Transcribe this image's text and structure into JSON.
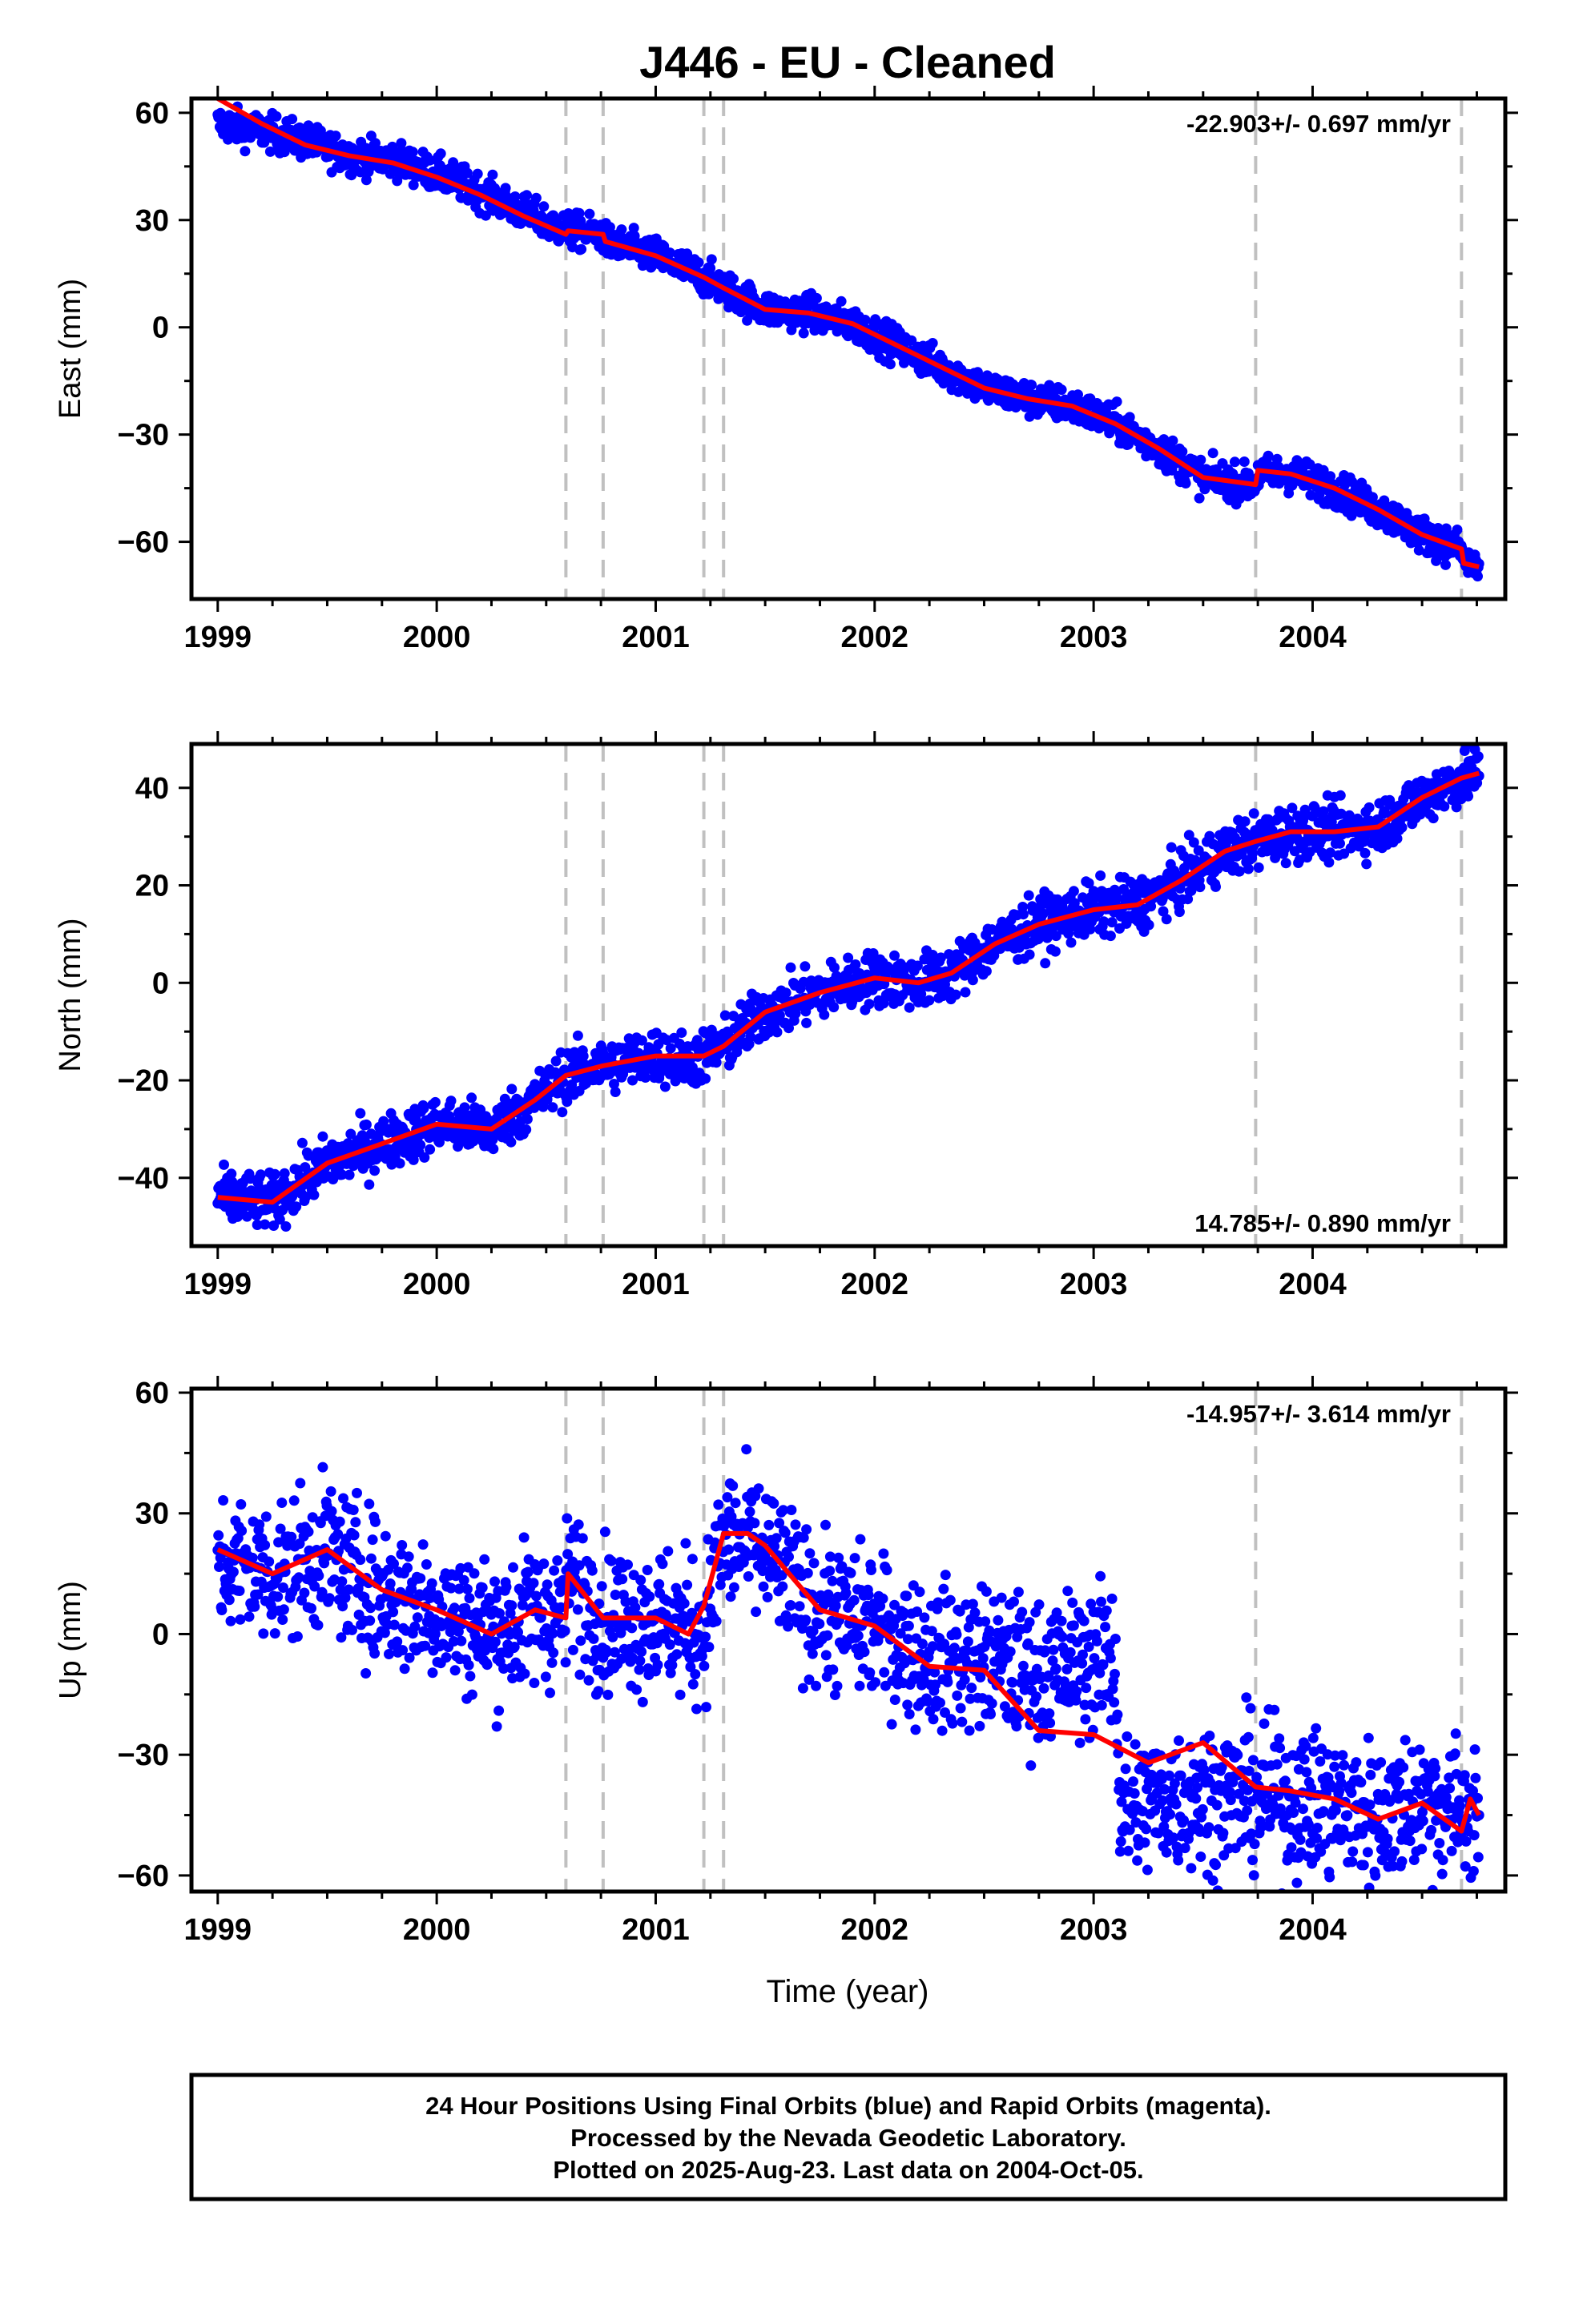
{
  "title": "J446  - EU - Cleaned",
  "xlabel": "Time (year)",
  "colors": {
    "points": "#0000ff",
    "fit": "#ff0000",
    "events": "#c0c0c0",
    "frame": "#000000"
  },
  "footer": {
    "line1": "24 Hour Positions Using Final Orbits (blue) and Rapid Orbits (magenta).",
    "line2": "Processed by the Nevada Geodetic Laboratory.",
    "line3": "Plotted on 2025-Aug-23. Last data on 2004-Oct-05."
  },
  "chart_data": [
    {
      "type": "scatter",
      "ylabel": "East (mm)",
      "rate_text": "-22.903+/- 0.697 mm/yr",
      "rate_position": "top-right",
      "xlim": [
        1998.88,
        2004.88
      ],
      "ylim": [
        -76,
        64
      ],
      "x_ticks": [
        1999,
        2000,
        2001,
        2002,
        2003,
        2004
      ],
      "x_tick_labels": [
        "1999",
        "2000",
        "2001",
        "2002",
        "2003",
        "2004"
      ],
      "y_ticks": [
        60,
        30,
        0,
        -30,
        -60
      ],
      "y_tick_labels": [
        "60",
        "30",
        "0",
        "−30",
        "−60"
      ],
      "event_lines": [
        2000.59,
        2000.76,
        2001.22,
        2001.31,
        2003.74,
        2004.68
      ],
      "series": [
        {
          "kind": "points",
          "scatter_mm": 2.5,
          "points": [
            [
              1999.0,
              57
            ],
            [
              1999.2,
              55
            ],
            [
              1999.4,
              52
            ],
            [
              1999.6,
              48
            ],
            [
              1999.8,
              47
            ],
            [
              2000.0,
              43
            ],
            [
              2000.2,
              38
            ],
            [
              2000.4,
              32
            ],
            [
              2000.59,
              27
            ],
            [
              2000.6,
              27
            ],
            [
              2000.76,
              26
            ],
            [
              2000.77,
              24
            ],
            [
              2001.0,
              20
            ],
            [
              2001.22,
              14
            ],
            [
              2001.31,
              11
            ],
            [
              2001.5,
              5
            ],
            [
              2001.7,
              4
            ],
            [
              2001.9,
              1
            ],
            [
              2002.1,
              -5
            ],
            [
              2002.3,
              -11
            ],
            [
              2002.5,
              -17
            ],
            [
              2002.7,
              -20
            ],
            [
              2002.9,
              -22
            ],
            [
              2003.1,
              -27
            ],
            [
              2003.3,
              -34
            ],
            [
              2003.5,
              -42
            ],
            [
              2003.74,
              -44
            ],
            [
              2003.75,
              -41
            ],
            [
              2003.9,
              -41
            ],
            [
              2004.1,
              -45
            ],
            [
              2004.3,
              -51
            ],
            [
              2004.5,
              -58
            ],
            [
              2004.68,
              -62
            ],
            [
              2004.69,
              -66
            ],
            [
              2004.76,
              -67
            ]
          ]
        },
        {
          "kind": "line",
          "points": [
            [
              1999.0,
              64
            ],
            [
              1999.2,
              57
            ],
            [
              1999.4,
              51
            ],
            [
              1999.6,
              48
            ],
            [
              1999.8,
              46
            ],
            [
              2000.0,
              42
            ],
            [
              2000.2,
              37
            ],
            [
              2000.4,
              31
            ],
            [
              2000.59,
              26
            ],
            [
              2000.6,
              27
            ],
            [
              2000.76,
              26
            ],
            [
              2000.77,
              24
            ],
            [
              2001.0,
              20
            ],
            [
              2001.22,
              14
            ],
            [
              2001.31,
              11
            ],
            [
              2001.5,
              5
            ],
            [
              2001.7,
              4
            ],
            [
              2001.9,
              1
            ],
            [
              2002.1,
              -5
            ],
            [
              2002.3,
              -11
            ],
            [
              2002.5,
              -17
            ],
            [
              2002.7,
              -20
            ],
            [
              2002.9,
              -22
            ],
            [
              2003.1,
              -27
            ],
            [
              2003.3,
              -34
            ],
            [
              2003.5,
              -42
            ],
            [
              2003.74,
              -44
            ],
            [
              2003.75,
              -40
            ],
            [
              2003.9,
              -41
            ],
            [
              2004.1,
              -45
            ],
            [
              2004.3,
              -51
            ],
            [
              2004.5,
              -58
            ],
            [
              2004.68,
              -62
            ],
            [
              2004.69,
              -66
            ],
            [
              2004.76,
              -67
            ]
          ]
        }
      ]
    },
    {
      "type": "scatter",
      "ylabel": "North (mm)",
      "rate_text": "14.785+/- 0.890 mm/yr",
      "rate_position": "bottom-right",
      "xlim": [
        1998.88,
        2004.88
      ],
      "ylim": [
        -54,
        49
      ],
      "x_ticks": [
        1999,
        2000,
        2001,
        2002,
        2003,
        2004
      ],
      "x_tick_labels": [
        "1999",
        "2000",
        "2001",
        "2002",
        "2003",
        "2004"
      ],
      "y_ticks": [
        40,
        20,
        0,
        -20,
        -40
      ],
      "y_tick_labels": [
        "40",
        "20",
        "0",
        "−20",
        "−40"
      ],
      "event_lines": [
        2000.59,
        2000.76,
        2001.22,
        2001.31,
        2003.74,
        2004.68
      ],
      "series": [
        {
          "kind": "points",
          "scatter_mm": 2.8,
          "points": [
            [
              1999.0,
              -44
            ],
            [
              1999.25,
              -45
            ],
            [
              1999.5,
              -37
            ],
            [
              1999.75,
              -33
            ],
            [
              2000.0,
              -29
            ],
            [
              2000.25,
              -30
            ],
            [
              2000.45,
              -24
            ],
            [
              2000.59,
              -19
            ],
            [
              2000.76,
              -17
            ],
            [
              2001.0,
              -15
            ],
            [
              2001.15,
              -16
            ],
            [
              2001.22,
              -15
            ],
            [
              2001.31,
              -13
            ],
            [
              2001.5,
              -6
            ],
            [
              2001.75,
              -2
            ],
            [
              2002.0,
              1
            ],
            [
              2002.2,
              0
            ],
            [
              2002.35,
              2
            ],
            [
              2002.55,
              8
            ],
            [
              2002.75,
              12
            ],
            [
              2003.0,
              15
            ],
            [
              2003.2,
              16
            ],
            [
              2003.4,
              21
            ],
            [
              2003.6,
              27
            ],
            [
              2003.74,
              29
            ],
            [
              2003.9,
              31
            ],
            [
              2004.1,
              31
            ],
            [
              2004.3,
              32
            ],
            [
              2004.5,
              38
            ],
            [
              2004.68,
              42
            ],
            [
              2004.76,
              43
            ]
          ]
        },
        {
          "kind": "line",
          "points": [
            [
              1999.0,
              -44
            ],
            [
              1999.25,
              -45
            ],
            [
              1999.5,
              -37
            ],
            [
              1999.75,
              -33
            ],
            [
              2000.0,
              -29
            ],
            [
              2000.25,
              -30
            ],
            [
              2000.45,
              -24
            ],
            [
              2000.59,
              -19
            ],
            [
              2000.76,
              -17
            ],
            [
              2001.0,
              -15
            ],
            [
              2001.15,
              -15
            ],
            [
              2001.22,
              -15
            ],
            [
              2001.31,
              -13
            ],
            [
              2001.5,
              -6
            ],
            [
              2001.75,
              -2
            ],
            [
              2002.0,
              1
            ],
            [
              2002.2,
              0
            ],
            [
              2002.35,
              2
            ],
            [
              2002.55,
              8
            ],
            [
              2002.75,
              12
            ],
            [
              2003.0,
              15
            ],
            [
              2003.2,
              16
            ],
            [
              2003.4,
              21
            ],
            [
              2003.6,
              27
            ],
            [
              2003.74,
              29
            ],
            [
              2003.9,
              31
            ],
            [
              2004.1,
              31
            ],
            [
              2004.3,
              32
            ],
            [
              2004.5,
              38
            ],
            [
              2004.68,
              42
            ],
            [
              2004.76,
              43
            ]
          ]
        }
      ]
    },
    {
      "type": "scatter",
      "ylabel": "Up (mm)",
      "rate_text": "-14.957+/- 3.614 mm/yr",
      "rate_position": "top-right",
      "xlabel": "Time (year)",
      "xlim": [
        1998.88,
        2004.88
      ],
      "ylim": [
        -64,
        61
      ],
      "x_ticks": [
        1999,
        2000,
        2001,
        2002,
        2003,
        2004
      ],
      "x_tick_labels": [
        "1999",
        "2000",
        "2001",
        "2002",
        "2003",
        "2004"
      ],
      "y_ticks": [
        60,
        30,
        0,
        -30,
        -60
      ],
      "y_tick_labels": [
        "60",
        "30",
        "0",
        "−30",
        "−60"
      ],
      "event_lines": [
        2000.59,
        2000.76,
        2001.22,
        2001.31,
        2003.74,
        2004.68
      ],
      "series": [
        {
          "kind": "points",
          "scatter_mm": 9,
          "points": [
            [
              1999.0,
              18
            ],
            [
              1999.25,
              15
            ],
            [
              1999.5,
              20
            ],
            [
              1999.75,
              10
            ],
            [
              2000.0,
              6
            ],
            [
              2000.25,
              1
            ],
            [
              2000.45,
              5
            ],
            [
              2000.59,
              6
            ],
            [
              2000.6,
              14
            ],
            [
              2000.76,
              4
            ],
            [
              2001.0,
              4
            ],
            [
              2001.22,
              0
            ],
            [
              2001.31,
              24
            ],
            [
              2001.5,
              20
            ],
            [
              2001.75,
              5
            ],
            [
              2002.0,
              2
            ],
            [
              2002.25,
              -6
            ],
            [
              2002.5,
              -6
            ],
            [
              2002.75,
              -10
            ],
            [
              2003.0,
              -6
            ],
            [
              2003.1,
              -6
            ],
            [
              2003.12,
              -44
            ],
            [
              2003.3,
              -41
            ],
            [
              2003.5,
              -40
            ],
            [
              2003.74,
              -40
            ],
            [
              2003.9,
              -41
            ],
            [
              2004.1,
              -43
            ],
            [
              2004.3,
              -45
            ],
            [
              2004.5,
              -41
            ],
            [
              2004.68,
              -44
            ],
            [
              2004.76,
              -42
            ]
          ]
        },
        {
          "kind": "line",
          "points": [
            [
              1999.0,
              21
            ],
            [
              1999.25,
              15
            ],
            [
              1999.5,
              21
            ],
            [
              1999.75,
              11
            ],
            [
              2000.0,
              6
            ],
            [
              2000.25,
              0
            ],
            [
              2000.45,
              6
            ],
            [
              2000.59,
              4
            ],
            [
              2000.6,
              15
            ],
            [
              2000.76,
              4
            ],
            [
              2001.0,
              4
            ],
            [
              2001.15,
              0
            ],
            [
              2001.22,
              7
            ],
            [
              2001.31,
              25
            ],
            [
              2001.42,
              25
            ],
            [
              2001.5,
              22
            ],
            [
              2001.75,
              6
            ],
            [
              2002.0,
              2
            ],
            [
              2002.25,
              -8
            ],
            [
              2002.5,
              -9
            ],
            [
              2002.75,
              -24
            ],
            [
              2003.0,
              -25
            ],
            [
              2003.25,
              -32
            ],
            [
              2003.5,
              -27
            ],
            [
              2003.74,
              -38
            ],
            [
              2003.9,
              -39
            ],
            [
              2004.1,
              -41
            ],
            [
              2004.3,
              -46
            ],
            [
              2004.5,
              -42
            ],
            [
              2004.68,
              -49
            ],
            [
              2004.72,
              -41
            ],
            [
              2004.76,
              -45
            ]
          ]
        }
      ]
    }
  ]
}
